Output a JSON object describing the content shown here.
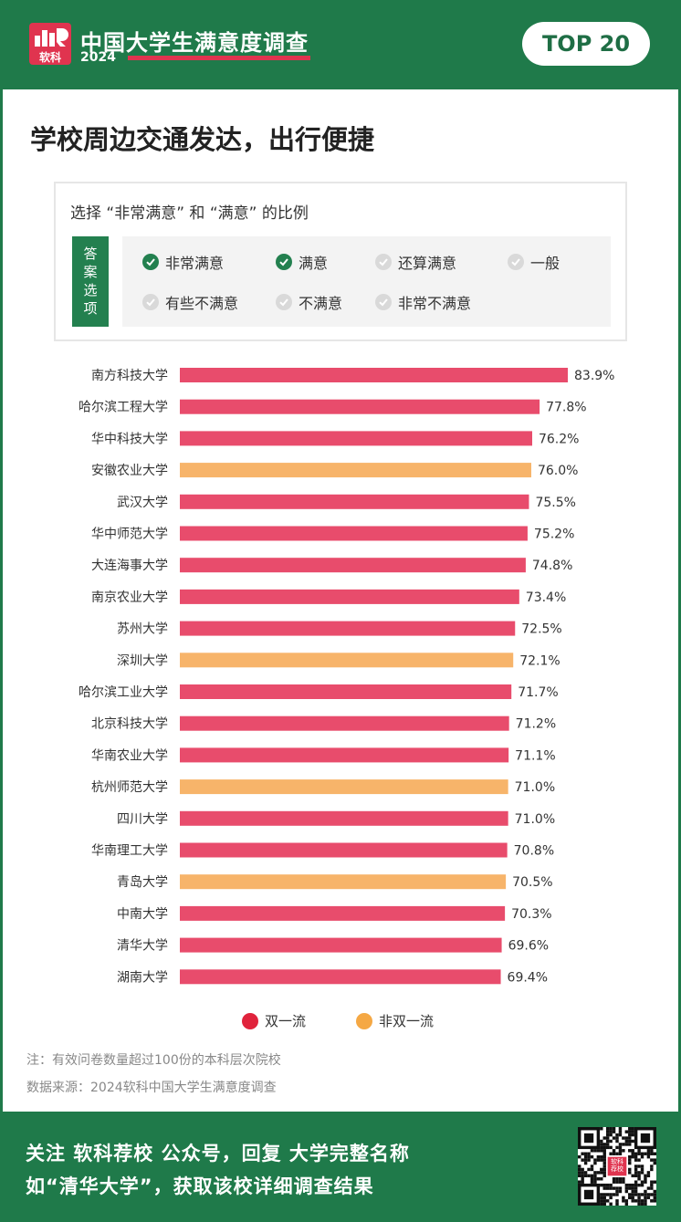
{
  "header": {
    "logo_text": "软科",
    "survey_title": "中国大学生满意度调查",
    "year": "2024",
    "badge": "TOP 20"
  },
  "headline": "学校周边交通发达，出行便捷",
  "options": {
    "title": "选择 “非常满意” 和 “满意” 的比例",
    "tag": "答案选项",
    "items": [
      {
        "label": "非常满意",
        "checked": true
      },
      {
        "label": "满意",
        "checked": true
      },
      {
        "label": "还算满意",
        "checked": false
      },
      {
        "label": "一般",
        "checked": false
      },
      {
        "label": "有些不满意",
        "checked": false
      },
      {
        "label": "不满意",
        "checked": false
      },
      {
        "label": "非常不满意",
        "checked": false
      }
    ]
  },
  "chart_data": {
    "type": "bar",
    "orientation": "horizontal",
    "categories": [
      "南方科技大学",
      "哈尔滨工程大学",
      "华中科技大学",
      "安徽农业大学",
      "武汉大学",
      "华中师范大学",
      "大连海事大学",
      "南京农业大学",
      "苏州大学",
      "深圳大学",
      "哈尔滨工业大学",
      "北京科技大学",
      "华南农业大学",
      "杭州师范大学",
      "四川大学",
      "华南理工大学",
      "青岛大学",
      "中南大学",
      "清华大学",
      "湖南大学"
    ],
    "values": [
      83.9,
      77.8,
      76.2,
      76.0,
      75.5,
      75.2,
      74.8,
      73.4,
      72.5,
      72.1,
      71.7,
      71.2,
      71.1,
      71.0,
      71.0,
      70.8,
      70.5,
      70.3,
      69.6,
      69.4
    ],
    "value_labels": [
      "83.9%",
      "77.8%",
      "76.2%",
      "76.0%",
      "75.5%",
      "75.2%",
      "74.8%",
      "73.4%",
      "72.5%",
      "72.1%",
      "71.7%",
      "71.2%",
      "71.1%",
      "71.0%",
      "71.0%",
      "70.8%",
      "70.5%",
      "70.3%",
      "69.6%",
      "69.4%"
    ],
    "groups": [
      "双一流",
      "双一流",
      "双一流",
      "非双一流",
      "双一流",
      "双一流",
      "双一流",
      "双一流",
      "双一流",
      "非双一流",
      "双一流",
      "双一流",
      "双一流",
      "非双一流",
      "双一流",
      "双一流",
      "非双一流",
      "双一流",
      "双一流",
      "双一流"
    ],
    "legend": [
      {
        "name": "双一流",
        "color": "#e84c6c"
      },
      {
        "name": "非双一流",
        "color": "#f7b46a"
      }
    ],
    "legend_dot_colors": {
      "双一流": "#e0233c",
      "非双一流": "#f5a844"
    },
    "grid": false,
    "legend_position": "bottom"
  },
  "notes": {
    "note": "注：有效问卷数量超过100份的本科层次院校",
    "source": "数据来源：2024软科中国大学生满意度调查"
  },
  "footer": {
    "line1": "关注 软科荐校 公众号，回复 大学完整名称",
    "line2": "如“清华大学”，获取该校详细调查结果",
    "qr_label": "软科\n荐校"
  },
  "colors": {
    "brand_green": "#1f7a4a",
    "accent_red": "#e0344f"
  }
}
